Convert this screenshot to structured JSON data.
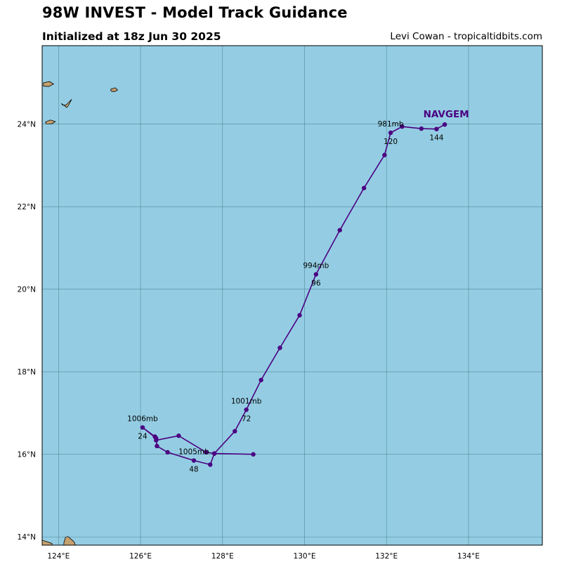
{
  "header": {
    "title": "98W INVEST - Model Track Guidance",
    "subtitle": "Initialized at 18z Jun 30 2025",
    "credit": "Levi Cowan - tropicaltidbits.com"
  },
  "colors": {
    "ocean": "#94cde3",
    "land": "#c4a06e",
    "grid": "#3f6f80",
    "track": "#4b0082"
  },
  "map": {
    "lon_range": [
      123.6,
      135.8
    ],
    "lat_range": [
      13.8,
      25.9
    ],
    "lon_ticks": [
      {
        "value": 124,
        "label": "124°E"
      },
      {
        "value": 126,
        "label": "126°E"
      },
      {
        "value": 128,
        "label": "128°E"
      },
      {
        "value": 130,
        "label": "130°E"
      },
      {
        "value": 132,
        "label": "132°E"
      },
      {
        "value": 134,
        "label": "134°E"
      }
    ],
    "lat_ticks": [
      {
        "value": 14,
        "label": "14°N"
      },
      {
        "value": 16,
        "label": "16°N"
      },
      {
        "value": 18,
        "label": "18°N"
      },
      {
        "value": 20,
        "label": "20°N"
      },
      {
        "value": 22,
        "label": "22°N"
      },
      {
        "value": 24,
        "label": "24°N"
      }
    ],
    "grid": true
  },
  "chart_data": {
    "type": "line",
    "x_axis": "longitude (°E)",
    "y_axis": "latitude (°N)",
    "series": [
      {
        "name": "NAVGEM",
        "color": "#4b0082",
        "points": [
          {
            "lon": 128.75,
            "lat": 16.0
          },
          {
            "lon": 127.8,
            "lat": 16.02
          },
          {
            "lon": 127.6,
            "lat": 16.05
          },
          {
            "lon": 126.93,
            "lat": 16.45
          },
          {
            "lon": 126.38,
            "lat": 16.34
          },
          {
            "lon": 126.35,
            "lat": 16.43
          },
          {
            "lon": 126.05,
            "lat": 16.65
          },
          {
            "lon": 126.38,
            "lat": 16.39
          },
          {
            "lon": 126.4,
            "lat": 16.2
          },
          {
            "lon": 126.66,
            "lat": 16.05
          },
          {
            "lon": 127.3,
            "lat": 15.85
          },
          {
            "lon": 127.7,
            "lat": 15.75
          },
          {
            "lon": 127.8,
            "lat": 16.02
          },
          {
            "lon": 128.3,
            "lat": 16.56
          },
          {
            "lon": 128.58,
            "lat": 17.08
          },
          {
            "lon": 128.94,
            "lat": 17.8
          },
          {
            "lon": 129.4,
            "lat": 18.58
          },
          {
            "lon": 129.88,
            "lat": 19.37
          },
          {
            "lon": 130.28,
            "lat": 20.36
          },
          {
            "lon": 130.86,
            "lat": 21.43
          },
          {
            "lon": 131.45,
            "lat": 22.45
          },
          {
            "lon": 131.95,
            "lat": 23.25
          },
          {
            "lon": 132.1,
            "lat": 23.79
          },
          {
            "lon": 132.38,
            "lat": 23.94
          },
          {
            "lon": 132.85,
            "lat": 23.89
          },
          {
            "lon": 133.22,
            "lat": 23.88
          },
          {
            "lon": 133.42,
            "lat": 23.99
          }
        ],
        "label_point": {
          "lon": 133.42,
          "lat": 23.99
        }
      }
    ],
    "annotations": [
      {
        "text": "1006mb",
        "lon": 126.05,
        "lat": 16.65,
        "pos": "above"
      },
      {
        "text": "24",
        "lon": 126.05,
        "lat": 16.65,
        "pos": "below"
      },
      {
        "text": "1005mb",
        "lon": 127.3,
        "lat": 15.85,
        "pos": "above"
      },
      {
        "text": "48",
        "lon": 127.3,
        "lat": 15.85,
        "pos": "below"
      },
      {
        "text": "1001mb",
        "lon": 128.58,
        "lat": 17.08,
        "pos": "above"
      },
      {
        "text": "72",
        "lon": 128.58,
        "lat": 17.08,
        "pos": "below"
      },
      {
        "text": "994mb",
        "lon": 130.28,
        "lat": 20.36,
        "pos": "above"
      },
      {
        "text": "96",
        "lon": 130.28,
        "lat": 20.36,
        "pos": "below"
      },
      {
        "text": "981mb",
        "lon": 132.1,
        "lat": 23.79,
        "pos": "above"
      },
      {
        "text": "120",
        "lon": 132.1,
        "lat": 23.79,
        "pos": "below"
      },
      {
        "text": "144",
        "lon": 133.22,
        "lat": 23.88,
        "pos": "below"
      }
    ]
  },
  "land": [
    {
      "name": "island-a",
      "poly": [
        [
          123.63,
          25.0
        ],
        [
          123.78,
          25.03
        ],
        [
          123.88,
          24.97
        ],
        [
          123.76,
          24.91
        ],
        [
          123.63,
          24.92
        ]
      ]
    },
    {
      "name": "island-b",
      "poly": [
        [
          124.07,
          24.5
        ],
        [
          124.2,
          24.4
        ],
        [
          124.24,
          24.45
        ],
        [
          124.32,
          24.6
        ],
        [
          124.24,
          24.52
        ],
        [
          124.18,
          24.46
        ],
        [
          124.1,
          24.46
        ]
      ]
    },
    {
      "name": "island-c",
      "poly": [
        [
          125.28,
          24.85
        ],
        [
          125.38,
          24.88
        ],
        [
          125.44,
          24.83
        ],
        [
          125.38,
          24.79
        ],
        [
          125.3,
          24.79
        ],
        [
          125.27,
          24.82
        ]
      ]
    },
    {
      "name": "island-d",
      "poly": [
        [
          123.68,
          24.05
        ],
        [
          123.8,
          24.1
        ],
        [
          123.92,
          24.06
        ],
        [
          123.84,
          24.01
        ],
        [
          123.7,
          24.0
        ]
      ]
    },
    {
      "name": "luzon-north-west",
      "poly": [
        [
          123.6,
          13.8
        ],
        [
          123.6,
          13.92
        ],
        [
          123.72,
          13.88
        ],
        [
          123.84,
          13.84
        ],
        [
          123.84,
          13.8
        ]
      ]
    },
    {
      "name": "luzon-north-east",
      "poly": [
        [
          124.13,
          13.8
        ],
        [
          124.13,
          13.86
        ],
        [
          124.17,
          13.99
        ],
        [
          124.23,
          14.01
        ],
        [
          124.3,
          13.95
        ],
        [
          124.38,
          13.88
        ],
        [
          124.41,
          13.8
        ]
      ]
    }
  ]
}
